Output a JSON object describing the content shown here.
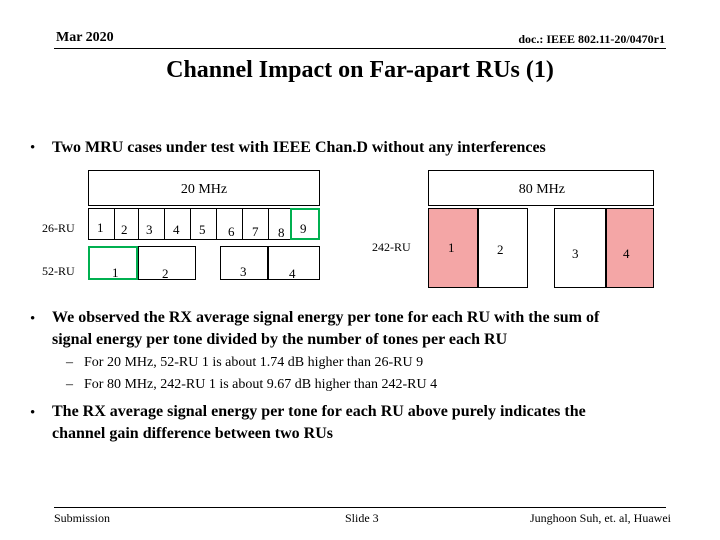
{
  "header": {
    "date": "Mar 2020",
    "doc": "doc.: IEEE 802.11-20/0470r1"
  },
  "title": "Channel Impact on Far-apart RUs (1)",
  "bullets": {
    "b1": "Two MRU cases under test with IEEE Chan.D without any interferences",
    "b2_line1": "We observed the RX average signal energy per tone for each RU with the sum of",
    "b2_line2": "signal energy per tone divided by the number of tones per each RU",
    "sub1": "For 20 MHz, 52-RU 1 is about 1.74 dB higher than 26-RU 9",
    "sub2": "For 80 MHz, 242-RU 1 is about 9.67 dB higher than 242-RU 4",
    "b3_line1": "The RX average signal energy per tone for each RU above purely indicates the",
    "b3_line2": "channel gain difference between two RUs",
    "dash": "–",
    "dot": "•"
  },
  "diagram": {
    "bw20_label": "20 MHz",
    "bw80_label": "80 MHz",
    "row26_label": "26-RU",
    "row52_label": "52-RU",
    "row242_label": "242-RU",
    "ru26": [
      "1",
      "2",
      "3",
      "4",
      "5",
      "6",
      "7",
      "8",
      "9"
    ],
    "ru52": [
      "1",
      "2",
      "3",
      "4"
    ],
    "ru242": [
      "1",
      "2",
      "3",
      "4"
    ],
    "highlight_colors": {
      "green": "#00b050",
      "red_fill": "#f4a6a6",
      "light_red": "#fbe3e3"
    }
  },
  "footer": {
    "left": "Submission",
    "center": "Slide 3",
    "right": "Junghoon Suh, et. al, Huawei"
  }
}
